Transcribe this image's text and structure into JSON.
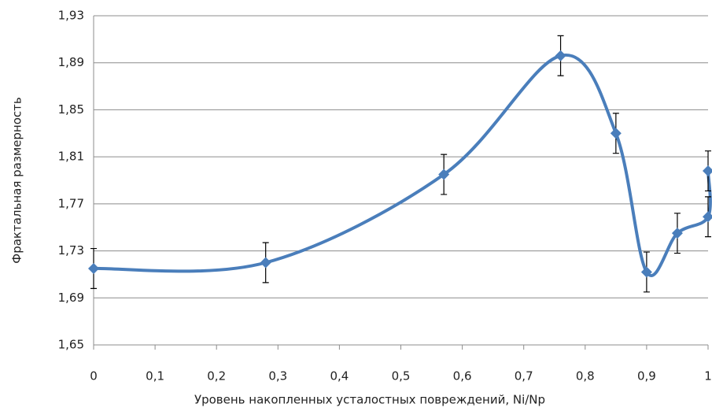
{
  "chart_data": {
    "type": "line",
    "smooth": true,
    "grid": true,
    "xlabel": "Уровень накопленных усталостных повреждений, Ni/Np",
    "ylabel": "Фрактальная размерность",
    "x": [
      0,
      0.28,
      0.57,
      0.76,
      0.85,
      0.9,
      0.95,
      1.0,
      1.0
    ],
    "series": [
      {
        "color": "#4a7ebb",
        "values": [
          1.715,
          1.72,
          1.795,
          1.896,
          1.83,
          1.712,
          1.745,
          1.759,
          1.798
        ],
        "errors": [
          0.017,
          0.017,
          0.017,
          0.017,
          0.017,
          0.017,
          0.017,
          0.017,
          0.017
        ]
      }
    ],
    "xlim": [
      0,
      1
    ],
    "xticks": [
      0,
      {
        "value": 0.1,
        "label": "0,1"
      },
      {
        "value": 0.2,
        "label": "0,2"
      },
      {
        "value": 0.3,
        "label": "0,3"
      },
      {
        "value": 0.4,
        "label": "0,4"
      },
      {
        "value": 0.5,
        "label": "0,5"
      },
      {
        "value": 0.6,
        "label": "0,6"
      },
      {
        "value": 0.7,
        "label": "0,7"
      },
      {
        "value": 0.8,
        "label": "0,8"
      },
      {
        "value": 0.9,
        "label": "0,9"
      },
      1
    ],
    "ylim": [
      1.65,
      1.93
    ],
    "yticks": [
      {
        "value": 1.65,
        "label": "1,65"
      },
      {
        "value": 1.69,
        "label": "1,69"
      },
      {
        "value": 1.73,
        "label": "1,73"
      },
      {
        "value": 1.77,
        "label": "1,77"
      },
      {
        "value": 1.81,
        "label": "1,81"
      },
      {
        "value": 1.85,
        "label": "1,85"
      },
      {
        "value": 1.89,
        "label": "1,89"
      },
      {
        "value": 1.93,
        "label": "1,93"
      }
    ]
  }
}
